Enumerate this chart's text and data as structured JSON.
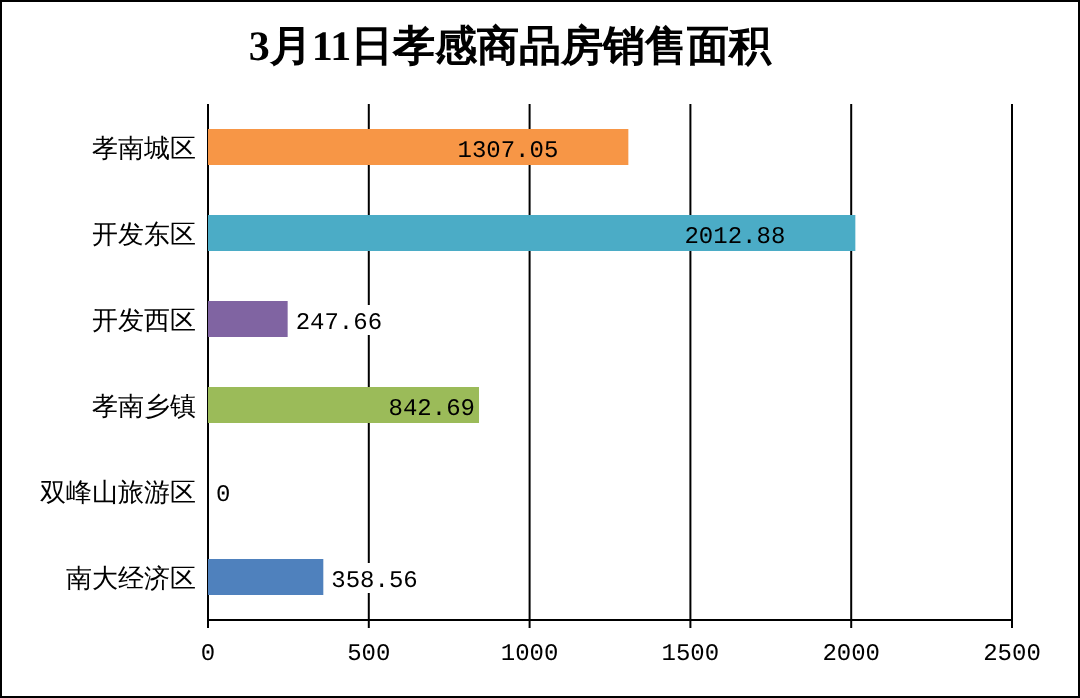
{
  "chart_data": {
    "type": "bar",
    "orientation": "horizontal",
    "title": "3月11日孝感商品房销售面积",
    "categories": [
      "孝南城区",
      "开发东区",
      "开发西区",
      "孝南乡镇",
      "双峰山旅游区",
      "南大经济区"
    ],
    "values": [
      1307.05,
      2012.88,
      247.66,
      842.69,
      0,
      358.56
    ],
    "colors": [
      "#f79646",
      "#4bacc6",
      "#8064a2",
      "#9bbb59",
      "#4f81bd",
      "#4f81bd"
    ],
    "xlim": [
      0,
      2500
    ],
    "xticks": [
      0,
      500,
      1000,
      1500,
      2000,
      2500
    ],
    "grid": "x",
    "data_labels": true
  }
}
